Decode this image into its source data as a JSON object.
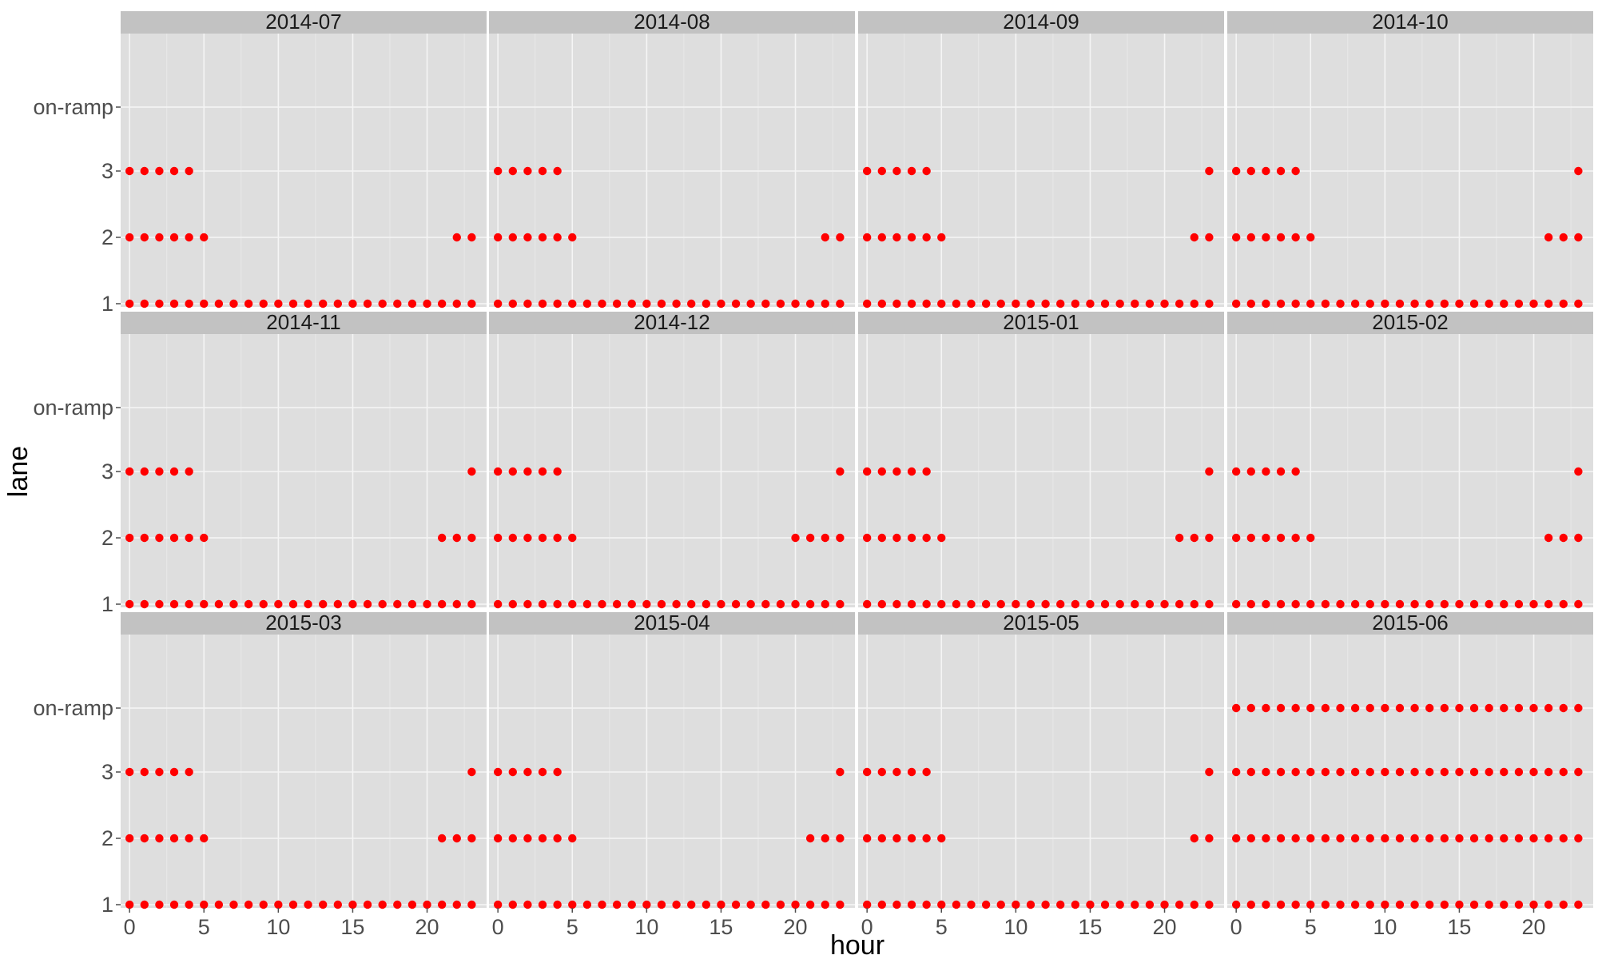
{
  "chart_data": {
    "type": "scatter",
    "facet_layout": "3 rows x 4 columns",
    "xlabel": "hour",
    "ylabel": "lane",
    "x_ticks": [
      "0",
      "5",
      "10",
      "15",
      "20"
    ],
    "x_tick_values": [
      0,
      5,
      10,
      15,
      20
    ],
    "xlim": [
      -0.6,
      24
    ],
    "y_categories": [
      "1",
      "2",
      "3",
      "on-ramp"
    ],
    "point_color": "#ff0000",
    "panel_background": "#dedede",
    "strip_background": "#c2c2c2",
    "grid": true,
    "panels": [
      {
        "label": "2014-07",
        "lanes": {
          "1": [
            0,
            1,
            2,
            3,
            4,
            5,
            6,
            7,
            8,
            9,
            10,
            11,
            12,
            13,
            14,
            15,
            16,
            17,
            18,
            19,
            20,
            21,
            22,
            23
          ],
          "2": [
            0,
            1,
            2,
            3,
            4,
            5,
            22,
            23
          ],
          "3": [
            0,
            1,
            2,
            3,
            4
          ],
          "on-ramp": []
        }
      },
      {
        "label": "2014-08",
        "lanes": {
          "1": [
            0,
            1,
            2,
            3,
            4,
            5,
            6,
            7,
            8,
            9,
            10,
            11,
            12,
            13,
            14,
            15,
            16,
            17,
            18,
            19,
            20,
            21,
            22,
            23
          ],
          "2": [
            0,
            1,
            2,
            3,
            4,
            5,
            22,
            23
          ],
          "3": [
            0,
            1,
            2,
            3,
            4
          ],
          "on-ramp": []
        }
      },
      {
        "label": "2014-09",
        "lanes": {
          "1": [
            0,
            1,
            2,
            3,
            4,
            5,
            6,
            7,
            8,
            9,
            10,
            11,
            12,
            13,
            14,
            15,
            16,
            17,
            18,
            19,
            20,
            21,
            22,
            23
          ],
          "2": [
            0,
            1,
            2,
            3,
            4,
            5,
            22,
            23
          ],
          "3": [
            0,
            1,
            2,
            3,
            4,
            23
          ],
          "on-ramp": []
        }
      },
      {
        "label": "2014-10",
        "lanes": {
          "1": [
            0,
            1,
            2,
            3,
            4,
            5,
            6,
            7,
            8,
            9,
            10,
            11,
            12,
            13,
            14,
            15,
            16,
            17,
            18,
            19,
            20,
            21,
            22,
            23
          ],
          "2": [
            0,
            1,
            2,
            3,
            4,
            5,
            21,
            22,
            23
          ],
          "3": [
            0,
            1,
            2,
            3,
            4,
            23
          ],
          "on-ramp": []
        }
      },
      {
        "label": "2014-11",
        "lanes": {
          "1": [
            0,
            1,
            2,
            3,
            4,
            5,
            6,
            7,
            8,
            9,
            10,
            11,
            12,
            13,
            14,
            15,
            16,
            17,
            18,
            19,
            20,
            21,
            22,
            23
          ],
          "2": [
            0,
            1,
            2,
            3,
            4,
            5,
            21,
            22,
            23
          ],
          "3": [
            0,
            1,
            2,
            3,
            4,
            23
          ],
          "on-ramp": []
        }
      },
      {
        "label": "2014-12",
        "lanes": {
          "1": [
            0,
            1,
            2,
            3,
            4,
            5,
            6,
            7,
            8,
            9,
            10,
            11,
            12,
            13,
            14,
            15,
            16,
            17,
            18,
            19,
            20,
            21,
            22,
            23
          ],
          "2": [
            0,
            1,
            2,
            3,
            4,
            5,
            20,
            21,
            22,
            23
          ],
          "3": [
            0,
            1,
            2,
            3,
            4,
            23
          ],
          "on-ramp": []
        }
      },
      {
        "label": "2015-01",
        "lanes": {
          "1": [
            0,
            1,
            2,
            3,
            4,
            5,
            6,
            7,
            8,
            9,
            10,
            11,
            12,
            13,
            14,
            15,
            16,
            17,
            18,
            19,
            20,
            21,
            22,
            23
          ],
          "2": [
            0,
            1,
            2,
            3,
            4,
            5,
            21,
            22,
            23
          ],
          "3": [
            0,
            1,
            2,
            3,
            4,
            23
          ],
          "on-ramp": []
        }
      },
      {
        "label": "2015-02",
        "lanes": {
          "1": [
            0,
            1,
            2,
            3,
            4,
            5,
            6,
            7,
            8,
            9,
            10,
            11,
            12,
            13,
            14,
            15,
            16,
            17,
            18,
            19,
            20,
            21,
            22,
            23
          ],
          "2": [
            0,
            1,
            2,
            3,
            4,
            5,
            21,
            22,
            23
          ],
          "3": [
            0,
            1,
            2,
            3,
            4,
            23
          ],
          "on-ramp": []
        }
      },
      {
        "label": "2015-03",
        "lanes": {
          "1": [
            0,
            1,
            2,
            3,
            4,
            5,
            6,
            7,
            8,
            9,
            10,
            11,
            12,
            13,
            14,
            15,
            16,
            17,
            18,
            19,
            20,
            21,
            22,
            23
          ],
          "2": [
            0,
            1,
            2,
            3,
            4,
            5,
            21,
            22,
            23
          ],
          "3": [
            0,
            1,
            2,
            3,
            4,
            23
          ],
          "on-ramp": []
        }
      },
      {
        "label": "2015-04",
        "lanes": {
          "1": [
            0,
            1,
            2,
            3,
            4,
            5,
            6,
            7,
            8,
            9,
            10,
            11,
            12,
            13,
            14,
            15,
            16,
            17,
            18,
            19,
            20,
            21,
            22,
            23
          ],
          "2": [
            0,
            1,
            2,
            3,
            4,
            5,
            21,
            22,
            23
          ],
          "3": [
            0,
            1,
            2,
            3,
            4,
            23
          ],
          "on-ramp": []
        }
      },
      {
        "label": "2015-05",
        "lanes": {
          "1": [
            0,
            1,
            2,
            3,
            4,
            5,
            6,
            7,
            8,
            9,
            10,
            11,
            12,
            13,
            14,
            15,
            16,
            17,
            18,
            19,
            20,
            21,
            22,
            23
          ],
          "2": [
            0,
            1,
            2,
            3,
            4,
            5,
            22,
            23
          ],
          "3": [
            0,
            1,
            2,
            3,
            4,
            23
          ],
          "on-ramp": []
        }
      },
      {
        "label": "2015-06",
        "lanes": {
          "1": [
            0,
            1,
            2,
            3,
            4,
            5,
            6,
            7,
            8,
            9,
            10,
            11,
            12,
            13,
            14,
            15,
            16,
            17,
            18,
            19,
            20,
            21,
            22,
            23
          ],
          "2": [
            0,
            1,
            2,
            3,
            4,
            5,
            6,
            7,
            8,
            9,
            10,
            11,
            12,
            13,
            14,
            15,
            16,
            17,
            18,
            19,
            20,
            21,
            22,
            23
          ],
          "3": [
            0,
            1,
            2,
            3,
            4,
            5,
            6,
            7,
            8,
            9,
            10,
            11,
            12,
            13,
            14,
            15,
            16,
            17,
            18,
            19,
            20,
            21,
            22,
            23
          ],
          "on-ramp": [
            0,
            1,
            2,
            3,
            4,
            5,
            6,
            7,
            8,
            9,
            10,
            11,
            12,
            13,
            14,
            15,
            16,
            17,
            18,
            19,
            20,
            21,
            22,
            23
          ]
        }
      }
    ]
  }
}
